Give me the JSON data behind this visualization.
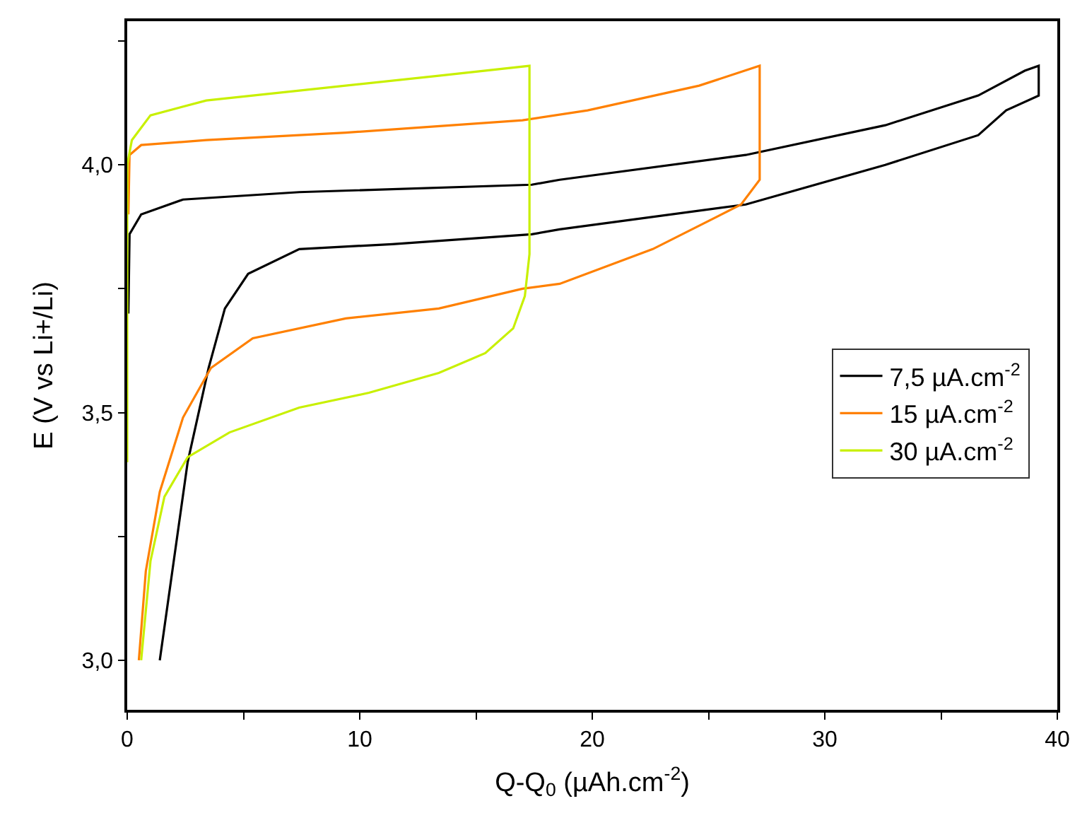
{
  "chart_data": {
    "type": "line",
    "xlabel": "Q-Q$_{0}$ (µAh.cm$^{-2}$)",
    "ylabel": "E (V vs Li+/Li)",
    "xlim": [
      0,
      40
    ],
    "ylim": [
      2.9,
      4.29
    ],
    "xticks": [
      0,
      {
        "value": 5,
        "label": null
      },
      10,
      {
        "value": 15,
        "label": null
      },
      20,
      {
        "value": 25,
        "label": null
      },
      30,
      {
        "value": 35,
        "label": null
      },
      40
    ],
    "yticks": [
      {
        "value": 3.0,
        "label": "3,0"
      },
      {
        "value": 3.25,
        "label": null
      },
      {
        "value": 3.5,
        "label": "3,5"
      },
      {
        "value": 3.75,
        "label": null
      },
      {
        "value": 4.0,
        "label": "4,0"
      },
      {
        "value": 4.25,
        "label": null
      }
    ],
    "legend": "right",
    "line_style": "solid",
    "series": [
      {
        "name": "7,5 µA.cm$^{-2}$",
        "color": "#000000",
        "x": [
          1.4,
          2.6,
          3.5,
          4.2,
          5.2,
          7.4,
          11.4,
          17.4,
          18.6,
          26.6,
          32.6,
          36.6,
          37.8,
          39.2,
          39.2,
          38.6,
          36.6,
          32.6,
          26.6,
          18.6,
          17.4,
          7.4,
          2.4,
          0.6,
          0.1,
          0.05
        ],
        "values": [
          3.0,
          3.4,
          3.59,
          3.71,
          3.78,
          3.83,
          3.84,
          3.86,
          3.87,
          3.92,
          4.0,
          4.06,
          4.11,
          4.14,
          4.2,
          4.19,
          4.14,
          4.08,
          4.02,
          3.97,
          3.96,
          3.945,
          3.93,
          3.9,
          3.86,
          3.7
        ]
      },
      {
        "name": "15 µA.cm$^{-2}$",
        "color": "#ff8000",
        "x": [
          0.5,
          0.8,
          1.4,
          2.4,
          3.6,
          5.4,
          9.4,
          13.4,
          17.0,
          18.6,
          22.6,
          26.4,
          27.2,
          27.2,
          24.6,
          19.8,
          17.0,
          9.4,
          3.4,
          0.6,
          0.1,
          0.05
        ],
        "values": [
          3.0,
          3.18,
          3.34,
          3.49,
          3.59,
          3.65,
          3.69,
          3.71,
          3.75,
          3.76,
          3.83,
          3.92,
          3.97,
          4.2,
          4.16,
          4.11,
          4.09,
          4.065,
          4.05,
          4.04,
          4.02,
          3.9
        ]
      },
      {
        "name": "30 µA.cm$^{-2}$",
        "color": "#c8f000",
        "x": [
          0.6,
          1.0,
          1.6,
          2.6,
          4.4,
          7.4,
          10.4,
          13.4,
          15.4,
          16.6,
          17.1,
          17.3,
          17.3,
          13.4,
          7.4,
          3.4,
          1.0,
          0.2,
          0.0,
          0.0
        ],
        "values": [
          3.0,
          3.2,
          3.33,
          3.41,
          3.46,
          3.51,
          3.54,
          3.58,
          3.62,
          3.67,
          3.735,
          3.82,
          4.2,
          4.18,
          4.15,
          4.13,
          4.1,
          4.05,
          4.0,
          3.4
        ]
      }
    ]
  }
}
